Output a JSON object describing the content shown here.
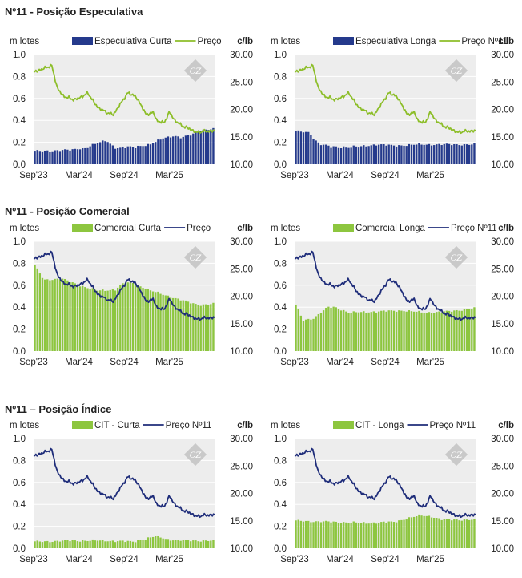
{
  "colors": {
    "green_price": "#8DBE2A",
    "green_bar": "#8DC63F",
    "navy": "#1F2D7A",
    "navy_bar": "#253A8C",
    "plot_bg": "#EDEDED",
    "grid": "#FFFFFF"
  },
  "sections": [
    {
      "title": "Nº11 - Posição Especulativa"
    },
    {
      "title": "Nº11 - Posição Comercial"
    },
    {
      "title": "Nº11 – Posição Índice"
    }
  ],
  "watermark": "CZ",
  "chart_data": [
    {
      "type": "bar+line",
      "left_unit": "m lotes",
      "right_unit": "c/lb",
      "bar_series": {
        "name": "Especulativa Curta",
        "color": "#253A8C",
        "start": 0.12,
        "end": 0.32,
        "keypoints": [
          [
            0,
            0.12
          ],
          [
            0.2,
            0.13
          ],
          [
            0.3,
            0.16
          ],
          [
            0.4,
            0.22
          ],
          [
            0.45,
            0.15
          ],
          [
            0.55,
            0.16
          ],
          [
            0.65,
            0.18
          ],
          [
            0.72,
            0.24
          ],
          [
            0.78,
            0.26
          ],
          [
            0.82,
            0.24
          ],
          [
            0.88,
            0.27
          ],
          [
            0.92,
            0.31
          ],
          [
            1,
            0.32
          ]
        ]
      },
      "line_series": {
        "name": "Preço",
        "color": "#8DBE2A",
        "keypoints": [
          [
            0,
            26.8
          ],
          [
            0.06,
            27.5
          ],
          [
            0.1,
            28.0
          ],
          [
            0.13,
            24.0
          ],
          [
            0.16,
            22.5
          ],
          [
            0.22,
            21.8
          ],
          [
            0.25,
            22.0
          ],
          [
            0.3,
            23.0
          ],
          [
            0.35,
            20.5
          ],
          [
            0.4,
            19.5
          ],
          [
            0.44,
            19.0
          ],
          [
            0.48,
            21.0
          ],
          [
            0.52,
            23.0
          ],
          [
            0.56,
            22.5
          ],
          [
            0.6,
            20.5
          ],
          [
            0.62,
            19.0
          ],
          [
            0.66,
            19.5
          ],
          [
            0.68,
            18.0
          ],
          [
            0.72,
            17.5
          ],
          [
            0.75,
            19.5
          ],
          [
            0.78,
            18.0
          ],
          [
            0.82,
            17.0
          ],
          [
            0.86,
            16.5
          ],
          [
            0.9,
            15.8
          ],
          [
            0.94,
            16.0
          ],
          [
            1,
            16.1
          ]
        ]
      },
      "left_ticks": [
        "1.0",
        "0.8",
        "0.6",
        "0.4",
        "0.2",
        "0.0"
      ],
      "right_ticks": [
        "30.00",
        "25.00",
        "20.00",
        "15.00",
        "10.00"
      ],
      "x_ticks": [
        "Sep'23",
        "Mar'24",
        "Sep'24",
        "Mar'25"
      ],
      "ylim_left": [
        0,
        1
      ],
      "ylim_right": [
        10,
        30
      ]
    },
    {
      "type": "bar+line",
      "left_unit": "m lotes",
      "right_unit": "c/lb",
      "bar_series": {
        "name": "Especulativa Longa",
        "color": "#253A8C",
        "keypoints": [
          [
            0,
            0.3
          ],
          [
            0.08,
            0.29
          ],
          [
            0.1,
            0.23
          ],
          [
            0.14,
            0.18
          ],
          [
            0.2,
            0.16
          ],
          [
            0.35,
            0.16
          ],
          [
            0.45,
            0.18
          ],
          [
            0.55,
            0.17
          ],
          [
            0.7,
            0.18
          ],
          [
            0.85,
            0.18
          ],
          [
            1,
            0.18
          ]
        ]
      },
      "line_series": {
        "name": "Preço Nº11",
        "color": "#8DBE2A",
        "keypoints": [
          [
            0,
            26.8
          ],
          [
            0.06,
            27.5
          ],
          [
            0.1,
            28.0
          ],
          [
            0.13,
            24.0
          ],
          [
            0.16,
            22.5
          ],
          [
            0.22,
            21.8
          ],
          [
            0.25,
            22.0
          ],
          [
            0.3,
            23.0
          ],
          [
            0.35,
            20.5
          ],
          [
            0.4,
            19.5
          ],
          [
            0.44,
            19.0
          ],
          [
            0.48,
            21.0
          ],
          [
            0.52,
            23.0
          ],
          [
            0.56,
            22.5
          ],
          [
            0.6,
            20.5
          ],
          [
            0.62,
            19.0
          ],
          [
            0.66,
            19.5
          ],
          [
            0.68,
            18.0
          ],
          [
            0.72,
            17.5
          ],
          [
            0.75,
            19.5
          ],
          [
            0.78,
            18.0
          ],
          [
            0.82,
            17.0
          ],
          [
            0.86,
            16.5
          ],
          [
            0.9,
            15.8
          ],
          [
            0.94,
            16.0
          ],
          [
            1,
            16.1
          ]
        ]
      },
      "left_ticks": [
        "1.0",
        "0.8",
        "0.6",
        "0.4",
        "0.2",
        "0.0"
      ],
      "right_ticks": [
        "30.00",
        "25.00",
        "20.00",
        "15.00",
        "10.00"
      ],
      "x_ticks": [
        "Sep'23",
        "Mar'24",
        "Sep'24",
        "Mar'25"
      ],
      "ylim_left": [
        0,
        1
      ],
      "ylim_right": [
        10,
        30
      ]
    },
    {
      "type": "bar+line",
      "left_unit": "m lotes",
      "right_unit": "c/lb",
      "bar_series": {
        "name": "Comercial Curta",
        "color": "#8DC63F",
        "keypoints": [
          [
            0,
            0.78
          ],
          [
            0.05,
            0.65
          ],
          [
            0.15,
            0.66
          ],
          [
            0.25,
            0.6
          ],
          [
            0.35,
            0.55
          ],
          [
            0.45,
            0.56
          ],
          [
            0.5,
            0.62
          ],
          [
            0.55,
            0.62
          ],
          [
            0.65,
            0.55
          ],
          [
            0.75,
            0.5
          ],
          [
            0.85,
            0.45
          ],
          [
            0.92,
            0.42
          ],
          [
            1,
            0.43
          ]
        ]
      },
      "line_series": {
        "name": "Preço",
        "color": "#1F2D7A",
        "keypoints": [
          [
            0,
            26.8
          ],
          [
            0.06,
            27.5
          ],
          [
            0.1,
            28.0
          ],
          [
            0.13,
            24.0
          ],
          [
            0.16,
            22.5
          ],
          [
            0.22,
            21.8
          ],
          [
            0.25,
            22.0
          ],
          [
            0.3,
            23.0
          ],
          [
            0.35,
            20.5
          ],
          [
            0.4,
            19.5
          ],
          [
            0.44,
            19.0
          ],
          [
            0.48,
            21.0
          ],
          [
            0.52,
            23.0
          ],
          [
            0.56,
            22.5
          ],
          [
            0.6,
            20.5
          ],
          [
            0.62,
            19.0
          ],
          [
            0.66,
            19.5
          ],
          [
            0.68,
            18.0
          ],
          [
            0.72,
            17.5
          ],
          [
            0.75,
            19.5
          ],
          [
            0.78,
            18.0
          ],
          [
            0.82,
            17.0
          ],
          [
            0.86,
            16.5
          ],
          [
            0.9,
            15.8
          ],
          [
            0.94,
            16.0
          ],
          [
            1,
            16.1
          ]
        ]
      },
      "left_ticks": [
        "1.0",
        "0.8",
        "0.6",
        "0.4",
        "0.2",
        "0.0"
      ],
      "right_ticks": [
        "30.00",
        "25.00",
        "20.00",
        "15.00",
        "10.00"
      ],
      "x_ticks": [
        "Sep'23",
        "Mar'24",
        "Sep'24",
        "Mar'25"
      ],
      "ylim_left": [
        0,
        1
      ],
      "ylim_right": [
        10,
        30
      ]
    },
    {
      "type": "bar+line",
      "left_unit": "m lotes",
      "right_unit": "c/lb",
      "bar_series": {
        "name": "Comercial Longa",
        "color": "#8DC63F",
        "keypoints": [
          [
            0,
            0.42
          ],
          [
            0.04,
            0.28
          ],
          [
            0.1,
            0.3
          ],
          [
            0.18,
            0.4
          ],
          [
            0.22,
            0.4
          ],
          [
            0.3,
            0.35
          ],
          [
            0.45,
            0.36
          ],
          [
            0.6,
            0.37
          ],
          [
            0.72,
            0.35
          ],
          [
            0.85,
            0.36
          ],
          [
            0.95,
            0.38
          ],
          [
            1,
            0.39
          ]
        ]
      },
      "line_series": {
        "name": "Preço Nº11",
        "color": "#1F2D7A",
        "keypoints": [
          [
            0,
            26.8
          ],
          [
            0.06,
            27.5
          ],
          [
            0.1,
            28.0
          ],
          [
            0.13,
            24.0
          ],
          [
            0.16,
            22.5
          ],
          [
            0.22,
            21.8
          ],
          [
            0.25,
            22.0
          ],
          [
            0.3,
            23.0
          ],
          [
            0.35,
            20.5
          ],
          [
            0.4,
            19.5
          ],
          [
            0.44,
            19.0
          ],
          [
            0.48,
            21.0
          ],
          [
            0.52,
            23.0
          ],
          [
            0.56,
            22.5
          ],
          [
            0.6,
            20.5
          ],
          [
            0.62,
            19.0
          ],
          [
            0.66,
            19.5
          ],
          [
            0.68,
            18.0
          ],
          [
            0.72,
            17.5
          ],
          [
            0.75,
            19.5
          ],
          [
            0.78,
            18.0
          ],
          [
            0.82,
            17.0
          ],
          [
            0.86,
            16.5
          ],
          [
            0.9,
            15.8
          ],
          [
            0.94,
            16.0
          ],
          [
            1,
            16.1
          ]
        ]
      },
      "left_ticks": [
        "1.0",
        "0.8",
        "0.6",
        "0.4",
        "0.2",
        "0.0"
      ],
      "right_ticks": [
        "30.00",
        "25.00",
        "20.00",
        "15.00",
        "10.00"
      ],
      "x_ticks": [
        "Sep'23",
        "Mar'24",
        "Sep'24",
        "Mar'25"
      ],
      "ylim_left": [
        0,
        1
      ],
      "ylim_right": [
        10,
        30
      ]
    },
    {
      "type": "bar+line",
      "left_unit": "m lotes",
      "right_unit": "c/lb",
      "bar_series": {
        "name": "CIT - Curta",
        "color": "#8DC63F",
        "keypoints": [
          [
            0,
            0.06
          ],
          [
            0.2,
            0.07
          ],
          [
            0.4,
            0.07
          ],
          [
            0.55,
            0.06
          ],
          [
            0.68,
            0.11
          ],
          [
            0.75,
            0.08
          ],
          [
            0.85,
            0.07
          ],
          [
            1,
            0.07
          ]
        ]
      },
      "line_series": {
        "name": "Preço Nº11",
        "color": "#1F2D7A",
        "keypoints": [
          [
            0,
            26.8
          ],
          [
            0.06,
            27.5
          ],
          [
            0.1,
            28.0
          ],
          [
            0.13,
            24.0
          ],
          [
            0.16,
            22.5
          ],
          [
            0.22,
            21.8
          ],
          [
            0.25,
            22.0
          ],
          [
            0.3,
            23.0
          ],
          [
            0.35,
            20.5
          ],
          [
            0.4,
            19.5
          ],
          [
            0.44,
            19.0
          ],
          [
            0.48,
            21.0
          ],
          [
            0.52,
            23.0
          ],
          [
            0.56,
            22.5
          ],
          [
            0.6,
            20.5
          ],
          [
            0.62,
            19.0
          ],
          [
            0.66,
            19.5
          ],
          [
            0.68,
            18.0
          ],
          [
            0.72,
            17.5
          ],
          [
            0.75,
            19.5
          ],
          [
            0.78,
            18.0
          ],
          [
            0.82,
            17.0
          ],
          [
            0.86,
            16.5
          ],
          [
            0.9,
            15.8
          ],
          [
            0.94,
            16.0
          ],
          [
            1,
            16.1
          ]
        ]
      },
      "left_ticks": [
        "1.0",
        "0.8",
        "0.6",
        "0.4",
        "0.2",
        "0.0"
      ],
      "right_ticks": [
        "30.00",
        "25.00",
        "20.00",
        "15.00",
        "10.00"
      ],
      "x_ticks": [
        "Sep'23",
        "Mar'24",
        "Sep'24",
        "Mar'25"
      ],
      "ylim_left": [
        0,
        1
      ],
      "ylim_right": [
        10,
        30
      ]
    },
    {
      "type": "bar+line",
      "left_unit": "m lotes",
      "right_unit": "c/lb",
      "bar_series": {
        "name": "CIT - Longa",
        "color": "#8DC63F",
        "keypoints": [
          [
            0,
            0.25
          ],
          [
            0.2,
            0.24
          ],
          [
            0.4,
            0.23
          ],
          [
            0.55,
            0.24
          ],
          [
            0.62,
            0.27
          ],
          [
            0.7,
            0.3
          ],
          [
            0.76,
            0.29
          ],
          [
            0.82,
            0.26
          ],
          [
            1,
            0.26
          ]
        ]
      },
      "line_series": {
        "name": "Preço Nº11",
        "color": "#1F2D7A",
        "keypoints": [
          [
            0,
            26.8
          ],
          [
            0.06,
            27.5
          ],
          [
            0.1,
            28.0
          ],
          [
            0.13,
            24.0
          ],
          [
            0.16,
            22.5
          ],
          [
            0.22,
            21.8
          ],
          [
            0.25,
            22.0
          ],
          [
            0.3,
            23.0
          ],
          [
            0.35,
            20.5
          ],
          [
            0.4,
            19.5
          ],
          [
            0.44,
            19.0
          ],
          [
            0.48,
            21.0
          ],
          [
            0.52,
            23.0
          ],
          [
            0.56,
            22.5
          ],
          [
            0.6,
            20.5
          ],
          [
            0.62,
            19.0
          ],
          [
            0.66,
            19.5
          ],
          [
            0.68,
            18.0
          ],
          [
            0.72,
            17.5
          ],
          [
            0.75,
            19.5
          ],
          [
            0.78,
            18.0
          ],
          [
            0.82,
            17.0
          ],
          [
            0.86,
            16.5
          ],
          [
            0.9,
            15.8
          ],
          [
            0.94,
            16.0
          ],
          [
            1,
            16.1
          ]
        ]
      },
      "left_ticks": [
        "1.0",
        "0.8",
        "0.6",
        "0.4",
        "0.2",
        "0.0"
      ],
      "right_ticks": [
        "30.00",
        "25.00",
        "20.00",
        "15.00",
        "10.00"
      ],
      "x_ticks": [
        "Sep'23",
        "Mar'24",
        "Sep'24",
        "Mar'25"
      ],
      "ylim_left": [
        0,
        1
      ],
      "ylim_right": [
        10,
        30
      ]
    }
  ]
}
